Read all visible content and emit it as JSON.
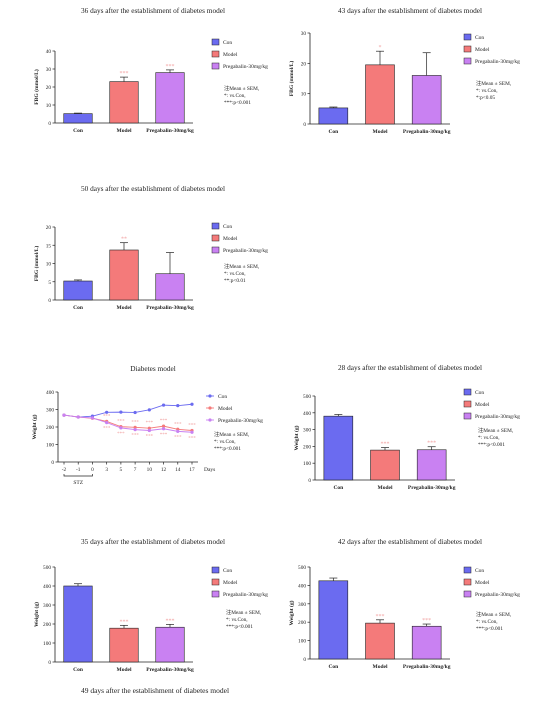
{
  "colors": {
    "con": "#6b6bf0",
    "model": "#f47a7a",
    "preg": "#c981f2",
    "stat": "#f2a5a5",
    "axis": "#222222"
  },
  "legend_labels": [
    "Con",
    "Model",
    "Pregabalin-30mg/kg"
  ],
  "footer_title": "49 days after the establishment of diabetes model",
  "chart_data": [
    {
      "type": "bar",
      "title": "36 days after the establishment of diabetes model",
      "categories": [
        "Con",
        "Model",
        "Pregabalin-30mg/kg"
      ],
      "ylabel": "FBG (mmol/L)",
      "ylim": [
        0,
        40
      ],
      "yticks": [
        "0",
        "10",
        "20",
        "30",
        "40"
      ],
      "series": [
        {
          "values": [
            5.2,
            23,
            28
          ]
        }
      ],
      "errors": [
        0.3,
        2.5,
        1.5
      ],
      "significance": [
        "",
        "***",
        "***"
      ],
      "notes": [
        "注Mean ± SEM,",
        "*: vs.Con,",
        "***:p<0.001"
      ]
    },
    {
      "type": "bar",
      "title": "43 days after the establishment of diabetes model",
      "categories": [
        "Con",
        "Model",
        "Pregabalin-30mg/kg"
      ],
      "ylabel": "FBG (mmol/L)",
      "ylim": [
        0,
        30
      ],
      "yticks": [
        "0",
        "10",
        "20",
        "30"
      ],
      "series": [
        {
          "values": [
            5.3,
            19.5,
            16
          ]
        }
      ],
      "errors": [
        0.3,
        4.5,
        7.5
      ],
      "significance": [
        "",
        "*",
        ""
      ],
      "notes": [
        "注Mean ± SEM,",
        "*: vs.Con,",
        "*:p<0.05"
      ]
    },
    {
      "type": "bar",
      "title": "50 days after the establishment of diabetes model",
      "categories": [
        "Con",
        "Model",
        "Pregabalin-30mg/kg"
      ],
      "ylabel": "FBG (mmol/L)",
      "ylim": [
        0,
        20
      ],
      "yticks": [
        "0",
        "5",
        "10",
        "15",
        "20"
      ],
      "series": [
        {
          "values": [
            5.2,
            13.7,
            7.2
          ]
        }
      ],
      "errors": [
        0.3,
        2,
        5.8
      ],
      "significance": [
        "",
        "**",
        ""
      ],
      "notes": [
        "注Mean ± SEM,",
        "*: vs.Con,",
        "**:p<0.01"
      ]
    },
    {
      "type": "line",
      "title": "Diabetes model",
      "x": [
        "-2",
        "-1",
        "0",
        "3",
        "5",
        "7",
        "10",
        "12",
        "14",
        "17"
      ],
      "xunit": "Days",
      "ylabel": "Weight (g)",
      "ylim": [
        0,
        400
      ],
      "yticks": [
        "0",
        "100",
        "200",
        "300",
        "400"
      ],
      "bracket_label": "STZ",
      "series": [
        {
          "name": "Con",
          "values": [
            268,
            257,
            262,
            284,
            285,
            283,
            298,
            325,
            322,
            330
          ]
        },
        {
          "name": "Model",
          "values": [
            268,
            257,
            250,
            232,
            202,
            198,
            193,
            205,
            187,
            180
          ]
        },
        {
          "name": "Pregabalin-30mg/kg",
          "values": [
            268,
            257,
            252,
            225,
            195,
            185,
            180,
            190,
            175,
            170
          ]
        }
      ],
      "significance": [
        "",
        "",
        "",
        "***",
        "***",
        "***",
        "***",
        "***",
        "***",
        "***"
      ],
      "notes": [
        "注Mean ± SEM,",
        "*: vs.Con,",
        "***:p<0.001"
      ]
    },
    {
      "type": "bar",
      "title": "28 days after the establishment of diabetes model",
      "categories": [
        "Con",
        "Model",
        "Pregabalin-30mg/kg"
      ],
      "ylabel": "Weight (g)",
      "ylim": [
        0,
        500
      ],
      "yticks": [
        "0",
        "100",
        "200",
        "300",
        "400",
        "500"
      ],
      "series": [
        {
          "values": [
            380,
            178,
            180
          ]
        }
      ],
      "errors": [
        10,
        15,
        18
      ],
      "significance": [
        "",
        "***",
        "***"
      ],
      "notes": [
        "注Mean ± SEM,",
        "*: vs.Con,",
        "***:p<0.001"
      ]
    },
    {
      "type": "bar",
      "title": "35 days after the establishment of diabetes model",
      "categories": [
        "Con",
        "Model",
        "Pregabalin-30mg/kg"
      ],
      "ylabel": "Weight (g)",
      "ylim": [
        0,
        500
      ],
      "yticks": [
        "0",
        "100",
        "200",
        "300",
        "400",
        "500"
      ],
      "series": [
        {
          "values": [
            400,
            178,
            183
          ]
        }
      ],
      "errors": [
        12,
        15,
        15
      ],
      "significance": [
        "",
        "***",
        "***"
      ],
      "notes": [
        "注Mean ± SEM,",
        "*: vs.Con,",
        "***:p<0.001"
      ]
    },
    {
      "type": "bar",
      "title": "42 days after the establishment of diabetes model",
      "categories": [
        "Con",
        "Model",
        "Pregabalin-30mg/kg"
      ],
      "ylabel": "Weight (g)",
      "ylim": [
        0,
        500
      ],
      "yticks": [
        "0",
        "100",
        "200",
        "300",
        "400",
        "500"
      ],
      "series": [
        {
          "values": [
            425,
            195,
            178
          ]
        }
      ],
      "errors": [
        15,
        18,
        12
      ],
      "significance": [
        "",
        "***",
        "***"
      ],
      "notes": [
        "注Mean ± SEM,",
        "*: vs.Con,",
        "***:p<0.001"
      ]
    }
  ]
}
